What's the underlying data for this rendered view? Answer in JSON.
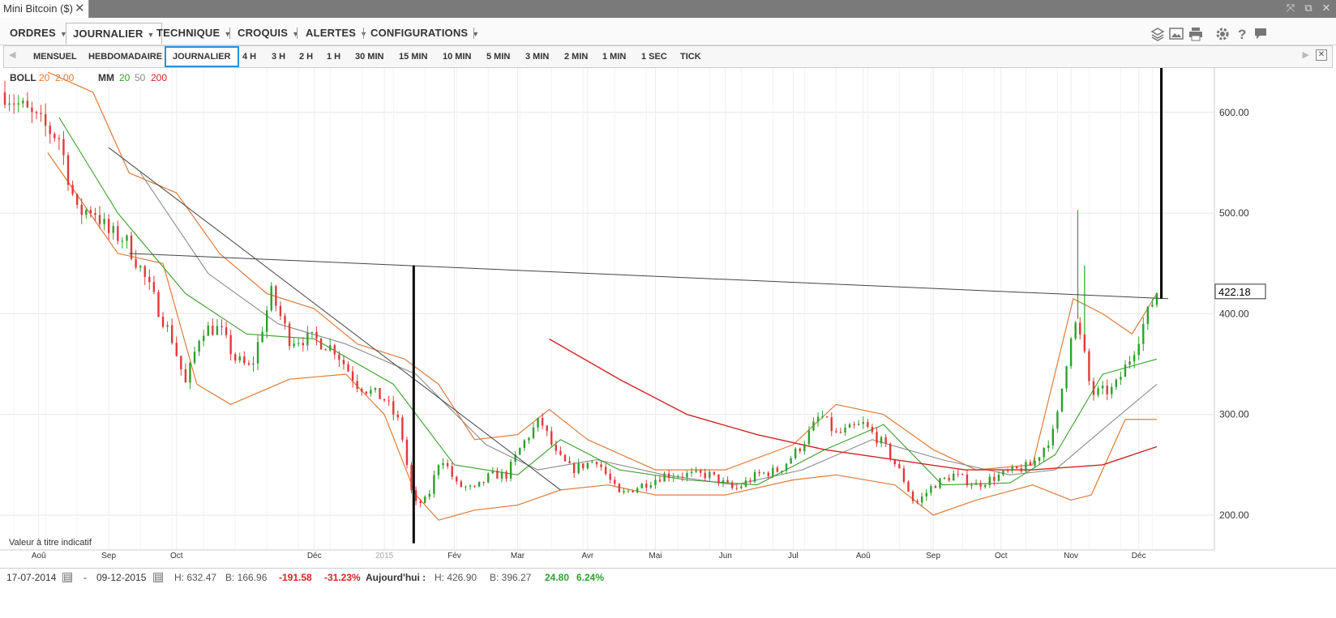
{
  "window": {
    "tab_title": "Mini Bitcoin ($)",
    "close_glyph": "✕",
    "controls": [
      "⤧",
      "⧉",
      "✕"
    ]
  },
  "menu": {
    "items": [
      {
        "label": "ORDRES",
        "active": false
      },
      {
        "label": "JOURNALIER",
        "active": true
      },
      {
        "label": "TECHNIQUE",
        "active": false
      },
      {
        "label": "CROQUIS",
        "active": false
      },
      {
        "label": "ALERTES",
        "active": false
      },
      {
        "label": "CONFIGURATIONS",
        "active": false
      }
    ],
    "tool_icons": [
      "layers-icon",
      "image-icon",
      "print-icon",
      "gear-icon",
      "help-icon",
      "message-icon"
    ]
  },
  "timeframes": {
    "items": [
      "MENSUEL",
      "HEBDOMADAIRE",
      "JOURNALIER",
      "4 H",
      "3 H",
      "2 H",
      "1 H",
      "30 MIN",
      "15 MIN",
      "10 MIN",
      "5 MIN",
      "3 MIN",
      "2 MIN",
      "1 MIN",
      "1 SEC",
      "TICK"
    ],
    "selected": "JOURNALIER"
  },
  "legend": {
    "boll_label": "BOLL",
    "boll_params": [
      "20",
      "2.00"
    ],
    "mm_label": "MM",
    "mm_params": [
      "20",
      "50",
      "200"
    ],
    "colors": {
      "boll": "#e07b39",
      "mm20": "#3aa02a",
      "mm50": "#8c8c8c",
      "mm200": "#d22424"
    }
  },
  "chart_data": {
    "type": "candlestick",
    "y_ticks": [
      "600.00",
      "500.00",
      "400.00",
      "300.00",
      "200.00"
    ],
    "ylim": [
      180,
      640
    ],
    "last_price": "422.18",
    "x_tick_labels": [
      "Aoû",
      "Sep",
      "Oct",
      "Déc",
      "2015",
      "Fév",
      "Mar",
      "Avr",
      "Mai",
      "Jun",
      "Jul",
      "Aoû",
      "Sep",
      "Oct",
      "Nov",
      "Déc"
    ],
    "x_range": [
      "2014-07-17",
      "2015-12-09"
    ],
    "grid": true,
    "note": "Valeur à titre indicatif",
    "close_path": [
      [
        "2014-07-17",
        620
      ],
      [
        "2014-08-01",
        590
      ],
      [
        "2014-08-10",
        575
      ],
      [
        "2014-08-18",
        500
      ],
      [
        "2014-08-25",
        505
      ],
      [
        "2014-09-01",
        480
      ],
      [
        "2014-09-08",
        475
      ],
      [
        "2014-09-15",
        445
      ],
      [
        "2014-09-22",
        410
      ],
      [
        "2014-09-29",
        375
      ],
      [
        "2014-10-05",
        330
      ],
      [
        "2014-10-12",
        385
      ],
      [
        "2014-10-20",
        385
      ],
      [
        "2014-10-27",
        355
      ],
      [
        "2014-11-03",
        345
      ],
      [
        "2014-11-12",
        420
      ],
      [
        "2014-11-20",
        375
      ],
      [
        "2014-12-01",
        375
      ],
      [
        "2014-12-10",
        365
      ],
      [
        "2014-12-20",
        330
      ],
      [
        "2015-01-01",
        315
      ],
      [
        "2015-01-08",
        290
      ],
      [
        "2015-01-14",
        210
      ],
      [
        "2015-01-20",
        215
      ],
      [
        "2015-01-26",
        260
      ],
      [
        "2015-02-02",
        230
      ],
      [
        "2015-02-10",
        225
      ],
      [
        "2015-02-17",
        240
      ],
      [
        "2015-02-24",
        240
      ],
      [
        "2015-03-03",
        270
      ],
      [
        "2015-03-11",
        295
      ],
      [
        "2015-03-18",
        260
      ],
      [
        "2015-03-25",
        245
      ],
      [
        "2015-04-05",
        255
      ],
      [
        "2015-04-15",
        220
      ],
      [
        "2015-04-25",
        230
      ],
      [
        "2015-05-05",
        240
      ],
      [
        "2015-05-15",
        240
      ],
      [
        "2015-05-25",
        240
      ],
      [
        "2015-06-05",
        225
      ],
      [
        "2015-06-15",
        240
      ],
      [
        "2015-06-25",
        245
      ],
      [
        "2015-07-05",
        270
      ],
      [
        "2015-07-13",
        300
      ],
      [
        "2015-07-20",
        280
      ],
      [
        "2015-08-01",
        290
      ],
      [
        "2015-08-10",
        270
      ],
      [
        "2015-08-18",
        240
      ],
      [
        "2015-08-24",
        210
      ],
      [
        "2015-09-01",
        230
      ],
      [
        "2015-09-10",
        240
      ],
      [
        "2015-09-20",
        230
      ],
      [
        "2015-10-01",
        240
      ],
      [
        "2015-10-15",
        250
      ],
      [
        "2015-10-25",
        285
      ],
      [
        "2015-11-02",
        395
      ],
      [
        "2015-11-06",
        370
      ],
      [
        "2015-11-10",
        320
      ],
      [
        "2015-11-20",
        325
      ],
      [
        "2015-11-28",
        360
      ],
      [
        "2015-12-04",
        395
      ],
      [
        "2015-12-09",
        422
      ]
    ],
    "sma20_path": [
      [
        "2014-08-10",
        595
      ],
      [
        "2014-09-05",
        500
      ],
      [
        "2014-10-05",
        420
      ],
      [
        "2014-11-01",
        380
      ],
      [
        "2014-12-01",
        375
      ],
      [
        "2015-01-05",
        330
      ],
      [
        "2015-02-01",
        250
      ],
      [
        "2015-03-01",
        240
      ],
      [
        "2015-03-20",
        275
      ],
      [
        "2015-04-15",
        245
      ],
      [
        "2015-05-15",
        235
      ],
      [
        "2015-06-15",
        230
      ],
      [
        "2015-07-15",
        265
      ],
      [
        "2015-08-10",
        290
      ],
      [
        "2015-09-05",
        230
      ],
      [
        "2015-10-05",
        232
      ],
      [
        "2015-10-25",
        260
      ],
      [
        "2015-11-15",
        340
      ],
      [
        "2015-12-09",
        355
      ]
    ],
    "sma50_path": [
      [
        "2014-09-15",
        540
      ],
      [
        "2014-10-15",
        440
      ],
      [
        "2014-11-15",
        390
      ],
      [
        "2014-12-15",
        370
      ],
      [
        "2015-01-15",
        340
      ],
      [
        "2015-02-15",
        270
      ],
      [
        "2015-03-10",
        245
      ],
      [
        "2015-04-05",
        255
      ],
      [
        "2015-05-05",
        240
      ],
      [
        "2015-06-05",
        230
      ],
      [
        "2015-07-05",
        245
      ],
      [
        "2015-08-05",
        275
      ],
      [
        "2015-09-05",
        255
      ],
      [
        "2015-10-05",
        240
      ],
      [
        "2015-10-25",
        245
      ],
      [
        "2015-11-15",
        285
      ],
      [
        "2015-12-09",
        330
      ]
    ],
    "sma200_path": [
      [
        "2015-03-15",
        375
      ],
      [
        "2015-04-15",
        335
      ],
      [
        "2015-05-15",
        300
      ],
      [
        "2015-06-15",
        280
      ],
      [
        "2015-07-15",
        265
      ],
      [
        "2015-08-15",
        255
      ],
      [
        "2015-09-15",
        245
      ],
      [
        "2015-10-15",
        245
      ],
      [
        "2015-11-15",
        250
      ],
      [
        "2015-12-09",
        268
      ]
    ],
    "boll_upper_path": [
      [
        "2014-08-05",
        640
      ],
      [
        "2014-08-25",
        620
      ],
      [
        "2014-09-10",
        540
      ],
      [
        "2014-10-01",
        520
      ],
      [
        "2014-10-20",
        460
      ],
      [
        "2014-11-10",
        420
      ],
      [
        "2014-12-01",
        405
      ],
      [
        "2014-12-20",
        370
      ],
      [
        "2015-01-10",
        355
      ],
      [
        "2015-01-25",
        330
      ],
      [
        "2015-02-10",
        275
      ],
      [
        "2015-03-01",
        280
      ],
      [
        "2015-03-15",
        305
      ],
      [
        "2015-04-01",
        275
      ],
      [
        "2015-05-01",
        245
      ],
      [
        "2015-06-01",
        245
      ],
      [
        "2015-07-01",
        270
      ],
      [
        "2015-07-20",
        310
      ],
      [
        "2015-08-10",
        300
      ],
      [
        "2015-09-01",
        265
      ],
      [
        "2015-09-20",
        245
      ],
      [
        "2015-10-15",
        250
      ],
      [
        "2015-11-02",
        415
      ],
      [
        "2015-11-15",
        400
      ],
      [
        "2015-11-28",
        380
      ],
      [
        "2015-12-09",
        420
      ]
    ],
    "boll_lower_path": [
      [
        "2014-08-05",
        560
      ],
      [
        "2014-09-05",
        460
      ],
      [
        "2014-09-25",
        450
      ],
      [
        "2014-10-10",
        330
      ],
      [
        "2014-10-25",
        310
      ],
      [
        "2014-11-20",
        335
      ],
      [
        "2014-12-15",
        340
      ],
      [
        "2015-01-01",
        300
      ],
      [
        "2015-01-15",
        220
      ],
      [
        "2015-01-25",
        195
      ],
      [
        "2015-02-10",
        205
      ],
      [
        "2015-03-01",
        210
      ],
      [
        "2015-03-20",
        225
      ],
      [
        "2015-04-10",
        230
      ],
      [
        "2015-05-01",
        220
      ],
      [
        "2015-06-01",
        220
      ],
      [
        "2015-07-01",
        235
      ],
      [
        "2015-07-20",
        240
      ],
      [
        "2015-08-15",
        230
      ],
      [
        "2015-09-01",
        200
      ],
      [
        "2015-09-20",
        215
      ],
      [
        "2015-10-15",
        230
      ],
      [
        "2015-11-01",
        215
      ],
      [
        "2015-11-10",
        220
      ],
      [
        "2015-11-25",
        295
      ],
      [
        "2015-12-09",
        295
      ]
    ],
    "annotation_lines": [
      {
        "type": "trend",
        "from": [
          "2014-09-01",
          565
        ],
        "to": [
          "2015-03-20",
          225
        ],
        "color": "#444"
      },
      {
        "type": "neckline",
        "from": [
          "2014-09-10",
          460
        ],
        "to": [
          "2015-12-14",
          415
        ],
        "color": "#444"
      },
      {
        "type": "vertical",
        "x": "2015-01-14",
        "from": 172,
        "to": 448,
        "color": "#000"
      },
      {
        "type": "vertical",
        "x": "2015-12-11",
        "from": 415,
        "to": 683,
        "color": "#000"
      }
    ],
    "spikes": [
      {
        "x": "2015-11-04",
        "high": 503,
        "low": 395
      },
      {
        "x": "2015-11-07",
        "high": 448,
        "low": 380
      }
    ]
  },
  "status": {
    "start_date": "17-07-2014",
    "separator": "-",
    "end_date": "09-12-2015",
    "high_label": "H: 632.47",
    "low_label": "B: 166.96",
    "change": "-191.58",
    "change_pct": "-31.23%",
    "today_label": "Aujourd'hui :",
    "today_high": "H: 426.90",
    "today_low": "B: 396.27",
    "today_change": "24.80",
    "today_change_pct": "6.24%"
  }
}
